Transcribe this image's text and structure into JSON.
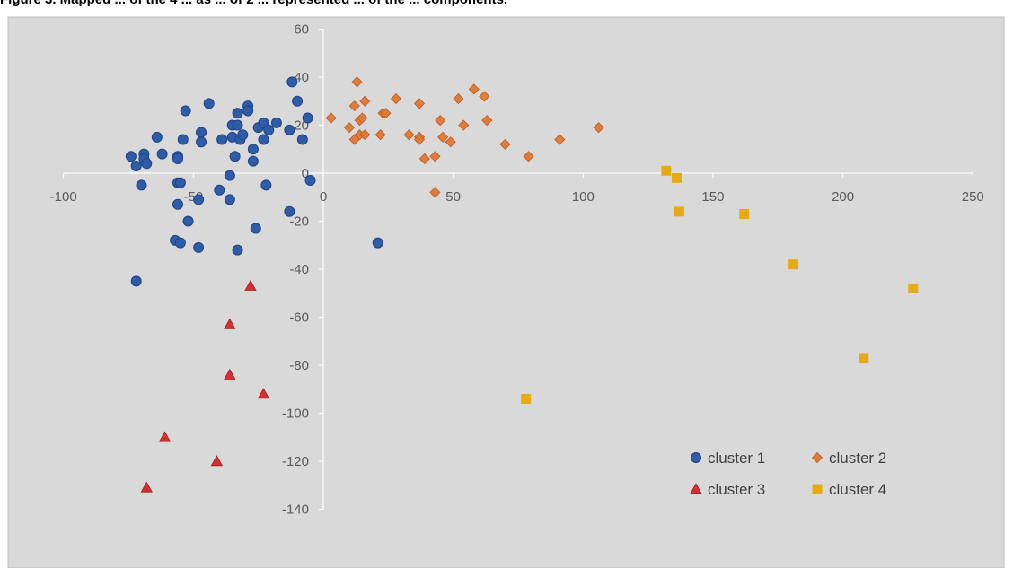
{
  "caption": "Figure 3.  Mapped ... of the 4 ... as ... of 2 ... represented ... of the ... components.",
  "chart_data": {
    "type": "scatter",
    "title": "",
    "xlabel": "",
    "ylabel": "",
    "xlim": [
      -100,
      250
    ],
    "ylim": [
      -140,
      60
    ],
    "x_ticks": [
      -100,
      -50,
      0,
      50,
      100,
      150,
      200,
      250
    ],
    "y_ticks": [
      60,
      40,
      20,
      0,
      -20,
      -40,
      -60,
      -80,
      -100,
      -120,
      -140
    ],
    "grid": false,
    "legend_position": "bottom-right",
    "background_color": "#d9d9d9",
    "series": [
      {
        "name": "cluster 1",
        "marker": "circle",
        "color": "#2e5ca8",
        "points": [
          [
            -74,
            7
          ],
          [
            -72,
            3
          ],
          [
            -70,
            -5
          ],
          [
            -69,
            8
          ],
          [
            -69,
            6
          ],
          [
            -68,
            4
          ],
          [
            -72,
            -45
          ],
          [
            -64,
            15
          ],
          [
            -62,
            8
          ],
          [
            -56,
            7
          ],
          [
            -56,
            6
          ],
          [
            -56,
            -4
          ],
          [
            -55,
            -4
          ],
          [
            -56,
            -13
          ],
          [
            -57,
            -28
          ],
          [
            -55,
            -29
          ],
          [
            -54,
            14
          ],
          [
            -53,
            26
          ],
          [
            -52,
            -20
          ],
          [
            -48,
            -31
          ],
          [
            -48,
            -11
          ],
          [
            -47,
            17
          ],
          [
            -47,
            13
          ],
          [
            -44,
            29
          ],
          [
            -40,
            -7
          ],
          [
            -39,
            14
          ],
          [
            -36,
            -1
          ],
          [
            -36,
            -11
          ],
          [
            -35,
            20
          ],
          [
            -35,
            15
          ],
          [
            -34,
            7
          ],
          [
            -33,
            -32
          ],
          [
            -33,
            20
          ],
          [
            -33,
            25
          ],
          [
            -32,
            14
          ],
          [
            -31,
            16
          ],
          [
            -29,
            28
          ],
          [
            -29,
            26
          ],
          [
            -27,
            10
          ],
          [
            -27,
            5
          ],
          [
            -26,
            -23
          ],
          [
            -25,
            19
          ],
          [
            -23,
            21
          ],
          [
            -23,
            14
          ],
          [
            -22,
            -5
          ],
          [
            -21,
            18
          ],
          [
            -18,
            21
          ],
          [
            -13,
            18
          ],
          [
            -13,
            -16
          ],
          [
            -12,
            38
          ],
          [
            -10,
            30
          ],
          [
            -8,
            14
          ],
          [
            -6,
            23
          ],
          [
            -5,
            -3
          ],
          [
            21,
            -29
          ]
        ]
      },
      {
        "name": "cluster 2",
        "marker": "diamond",
        "color": "#e07b39",
        "points": [
          [
            3,
            23
          ],
          [
            10,
            19
          ],
          [
            12,
            28
          ],
          [
            12,
            14
          ],
          [
            13,
            38
          ],
          [
            14,
            16
          ],
          [
            14,
            22
          ],
          [
            15,
            23
          ],
          [
            16,
            30
          ],
          [
            16,
            16
          ],
          [
            22,
            16
          ],
          [
            23,
            25
          ],
          [
            24,
            25
          ],
          [
            28,
            31
          ],
          [
            33,
            16
          ],
          [
            37,
            29
          ],
          [
            37,
            15
          ],
          [
            37,
            14
          ],
          [
            39,
            6
          ],
          [
            43,
            7
          ],
          [
            43,
            -8
          ],
          [
            45,
            22
          ],
          [
            46,
            15
          ],
          [
            49,
            13
          ],
          [
            52,
            31
          ],
          [
            54,
            20
          ],
          [
            58,
            35
          ],
          [
            62,
            32
          ],
          [
            63,
            22
          ],
          [
            70,
            12
          ],
          [
            79,
            7
          ],
          [
            91,
            14
          ],
          [
            106,
            19
          ]
        ]
      },
      {
        "name": "cluster 3",
        "marker": "triangle",
        "color": "#d62f2f",
        "points": [
          [
            -28,
            -47
          ],
          [
            -36,
            -63
          ],
          [
            -36,
            -84
          ],
          [
            -23,
            -92
          ],
          [
            -61,
            -110
          ],
          [
            -41,
            -120
          ],
          [
            -68,
            -131
          ]
        ]
      },
      {
        "name": "cluster 4",
        "marker": "square",
        "color": "#e8aa14",
        "points": [
          [
            132,
            1
          ],
          [
            136,
            -2
          ],
          [
            137,
            -16
          ],
          [
            162,
            -17
          ],
          [
            181,
            -38
          ],
          [
            227,
            -48
          ],
          [
            208,
            -77
          ],
          [
            78,
            -94
          ]
        ]
      }
    ]
  }
}
